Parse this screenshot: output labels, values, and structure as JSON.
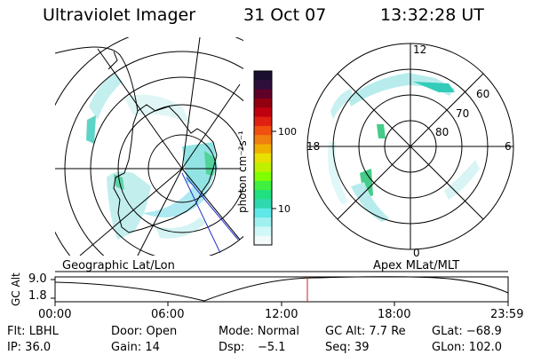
{
  "header": {
    "instrument": "Ultraviolet Imager",
    "date": "31 Oct 07",
    "time": "13:32:28 UT"
  },
  "panels": {
    "left_caption": "Geographic Lat/Lon",
    "right_caption": "Apex MLat/MLT"
  },
  "polar_plot": {
    "mlt_labels": [
      "12",
      "18",
      "6",
      "0"
    ],
    "lat_labels": [
      "60",
      "70",
      "80"
    ]
  },
  "colorbar": {
    "unit_label": "photon cm⁻²s⁻¹",
    "ticks": [
      "100",
      "10"
    ],
    "colors": [
      "#1a0f2e",
      "#2e0f3c",
      "#600028",
      "#900010",
      "#c00010",
      "#e02010",
      "#f05010",
      "#f08010",
      "#f0b000",
      "#e8e000",
      "#c0f000",
      "#80ff00",
      "#40f040",
      "#20e080",
      "#30d8b0",
      "#60e8e8",
      "#a0f0f0",
      "#d0f8f8",
      "#f2fafa"
    ]
  },
  "altitude_panel": {
    "ylabel": "GC Alt",
    "yticks": [
      "9.0",
      "1.8"
    ],
    "xticks": [
      "00:00",
      "06:00",
      "12:00",
      "18:00",
      "23:59"
    ],
    "marker_color": "#cc2222"
  },
  "info": {
    "flt": "Flt: LBHL",
    "door": "Door: Open",
    "mode": "Mode: Normal",
    "gcalt": "GC Alt: 7.7 Re",
    "glat": "GLat: −68.9",
    "ip": "IP: 36.0",
    "gain": "Gain: 14",
    "dsp_label": "Dsp:",
    "dsp_value": "−5.1",
    "seq": "Seq: 39",
    "glon": "GLon: 102.0"
  }
}
